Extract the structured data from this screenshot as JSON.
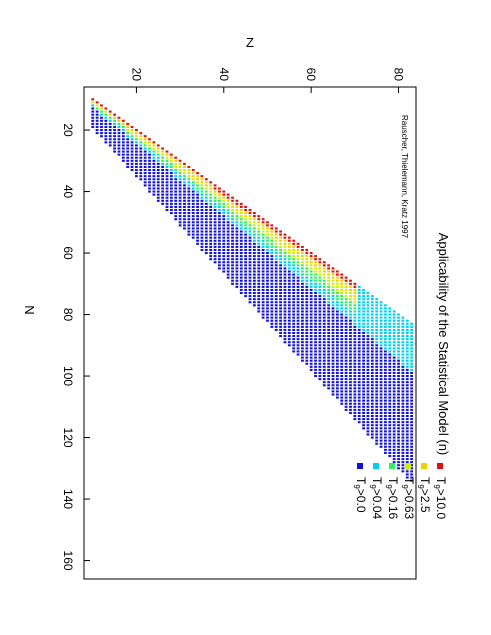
{
  "chart_data": {
    "type": "heatmap",
    "title": "Applicability of the Statistical Model (n)",
    "credit": "Rauscher, Thielemann, Kratz 1997",
    "xlabel": "N",
    "ylabel": "Z",
    "xlim": [
      6,
      166
    ],
    "ylim": [
      8,
      84
    ],
    "x_ticks": [
      "20",
      "40",
      "60",
      "80",
      "100",
      "120",
      "140",
      "160"
    ],
    "y_ticks": [
      "20",
      "40",
      "60",
      "80"
    ],
    "legend_position": "bottom-right",
    "legend": [
      {
        "prefix": "T",
        "sub": "9",
        "suffix": ">0.0",
        "color": "#1010e0"
      },
      {
        "prefix": "T",
        "sub": "9",
        "suffix": ">0.04",
        "color": "#00d0f0"
      },
      {
        "prefix": "T",
        "sub": "9",
        "suffix": ">0.16",
        "color": "#30f060"
      },
      {
        "prefix": "T",
        "sub": "9",
        "suffix": ">0.63",
        "color": "#d0f000"
      },
      {
        "prefix": "T",
        "sub": "9",
        "suffix": ">2.5",
        "color": "#f0d000"
      },
      {
        "prefix": "T",
        "sub": "9",
        "suffix": ">10.0",
        "color": "#e01010"
      }
    ],
    "region": {
      "z_min": 10,
      "z_max": 83,
      "n_low_at_zmin": 10,
      "n_low_slope": 1.0,
      "n_high_at_zmin": 19,
      "n_high_slope": 1.58,
      "n_max": 166
    }
  }
}
